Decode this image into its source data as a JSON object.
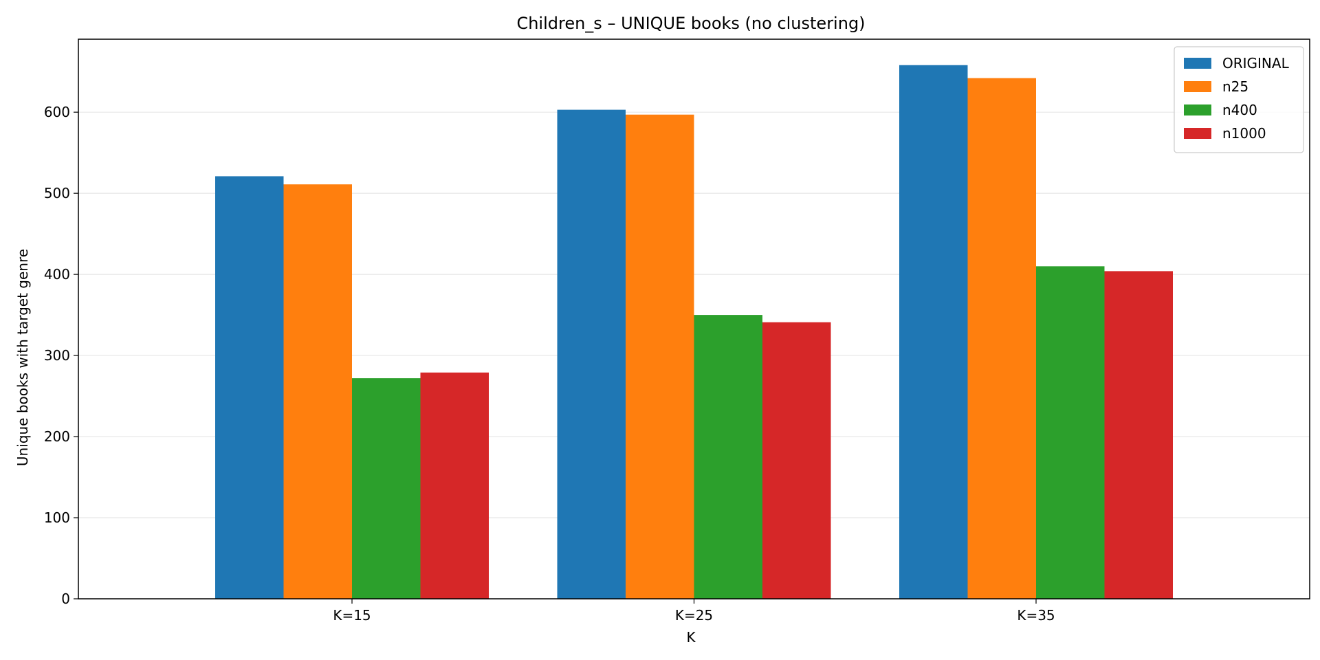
{
  "chart_data": {
    "type": "bar",
    "title": "Children_s – UNIQUE books (no clustering)",
    "xlabel": "K",
    "ylabel": "Unique books with target genre",
    "categories": [
      "K=15",
      "K=25",
      "K=35"
    ],
    "series": [
      {
        "name": "ORIGINAL",
        "color": "#1f77b4",
        "values": [
          521,
          603,
          658
        ]
      },
      {
        "name": "n25",
        "color": "#ff7f0e",
        "values": [
          511,
          597,
          642
        ]
      },
      {
        "name": "n400",
        "color": "#2ca02c",
        "values": [
          272,
          350,
          410
        ]
      },
      {
        "name": "n1000",
        "color": "#d62728",
        "values": [
          279,
          341,
          404
        ]
      }
    ],
    "ylim": [
      0,
      690
    ],
    "yticks": [
      0,
      100,
      200,
      300,
      400,
      500,
      600
    ],
    "grid": "y",
    "legend_position": "top-right"
  }
}
